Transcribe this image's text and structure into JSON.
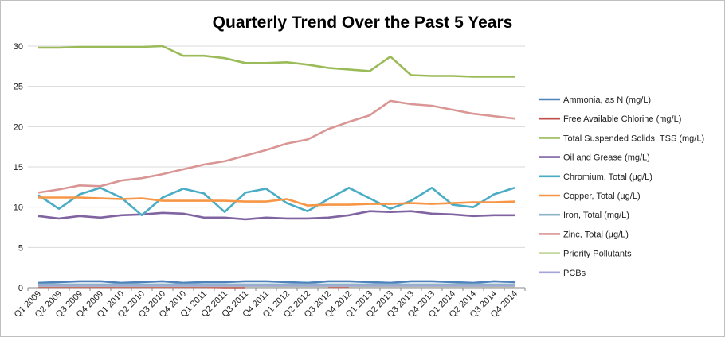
{
  "chart_data": {
    "type": "line",
    "title": "Quarterly Trend Over the Past 5 Years",
    "xlabel": "",
    "ylabel": "",
    "ylim": [
      0,
      30
    ],
    "yticks": [
      0,
      5,
      10,
      15,
      20,
      25,
      30
    ],
    "grid": true,
    "legend_position": "right",
    "categories": [
      "Q1 2009",
      "Q2 2009",
      "Q3 2009",
      "Q4 2009",
      "Q1 2010",
      "Q2 2010",
      "Q3 2010",
      "Q4 2010",
      "Q1 2011",
      "Q2 2011",
      "Q3 2011",
      "Q4 2011",
      "Q1 2012",
      "Q2 2012",
      "Q3 2012",
      "Q4 2012",
      "Q1 2013",
      "Q2 2013",
      "Q3 2013",
      "Q4 2013",
      "Q1 2014",
      "Q2 2014",
      "Q3 2014",
      "Q4 2014"
    ],
    "series": [
      {
        "name": "Ammonia, as N (mg/L)",
        "color": "#4f81bd",
        "values": [
          0.6,
          0.7,
          0.8,
          0.8,
          0.6,
          0.7,
          0.8,
          0.6,
          0.7,
          0.7,
          0.8,
          0.8,
          0.7,
          0.6,
          0.8,
          0.8,
          0.7,
          0.6,
          0.8,
          0.8,
          0.7,
          0.6,
          0.8,
          0.7
        ]
      },
      {
        "name": "Free Available Chlorine (mg/L)",
        "color": "#c0504d",
        "values": [
          0.1,
          0.1,
          0.1,
          0.1,
          0.1,
          0.1,
          0.1,
          0.1,
          0.1,
          0.05,
          0.05,
          null,
          null,
          null,
          0.1,
          0.1,
          null,
          null,
          null,
          null,
          null,
          null,
          null,
          null
        ]
      },
      {
        "name": "Total Suspended Solids, TSS (mg/L)",
        "color": "#9bbb59",
        "values": [
          29.8,
          29.8,
          29.9,
          29.9,
          29.9,
          29.9,
          30.0,
          28.8,
          28.8,
          28.5,
          27.9,
          27.9,
          28.0,
          27.7,
          27.3,
          27.1,
          26.9,
          28.7,
          26.4,
          26.3,
          26.3,
          26.2,
          26.2,
          26.2
        ]
      },
      {
        "name": "Oil and Grease (mg/L)",
        "color": "#8064a2",
        "values": [
          8.9,
          8.6,
          8.9,
          8.7,
          9.0,
          9.1,
          9.3,
          9.2,
          8.7,
          8.7,
          8.5,
          8.7,
          8.6,
          8.6,
          8.7,
          9.0,
          9.5,
          9.4,
          9.5,
          9.2,
          9.1,
          8.9,
          9.0,
          9.0
        ]
      },
      {
        "name": "Chromium, Total (µg/L)",
        "color": "#4bacc6",
        "values": [
          11.5,
          9.8,
          11.6,
          12.4,
          11.2,
          9.0,
          11.2,
          12.3,
          11.7,
          9.4,
          11.8,
          12.3,
          10.5,
          9.5,
          11.0,
          12.4,
          11.1,
          9.8,
          10.8,
          12.4,
          10.3,
          10.0,
          11.6,
          12.4
        ]
      },
      {
        "name": "Copper, Total (µg/L)",
        "color": "#f79646",
        "values": [
          11.2,
          11.2,
          11.2,
          11.1,
          11.0,
          11.1,
          10.8,
          10.8,
          10.8,
          10.8,
          10.7,
          10.7,
          11.0,
          10.2,
          10.3,
          10.3,
          10.4,
          10.4,
          10.5,
          10.4,
          10.5,
          10.6,
          10.6,
          10.7
        ]
      },
      {
        "name": "Iron, Total (mg/L)",
        "color": "#8eb4c8",
        "values": [
          0.4,
          0.4,
          0.4,
          0.4,
          0.4,
          0.4,
          0.4,
          0.4,
          0.4,
          0.4,
          0.4,
          0.4,
          0.4,
          0.4,
          0.4,
          0.4,
          0.4,
          0.4,
          0.4,
          0.4,
          0.4,
          0.4,
          0.4,
          0.4
        ]
      },
      {
        "name": "Zinc, Total (µg/L)",
        "color": "#d99694",
        "values": [
          11.8,
          12.2,
          12.7,
          12.6,
          13.3,
          13.6,
          14.1,
          14.7,
          15.3,
          15.7,
          16.4,
          17.1,
          17.9,
          18.4,
          19.7,
          20.6,
          21.4,
          23.2,
          22.8,
          22.6,
          22.1,
          21.6,
          21.3,
          21.0
        ]
      },
      {
        "name": "Priority Pollutants",
        "color": "#c3d69b",
        "values": [
          0.2,
          0.2,
          0.2,
          0.2,
          0.2,
          0.2,
          0.2,
          0.2,
          0.2,
          0.2,
          0.2,
          0.2,
          0.2,
          0.2,
          0.2,
          0.2,
          0.2,
          0.2,
          0.2,
          0.2,
          0.2,
          0.2,
          0.2,
          0.2
        ]
      },
      {
        "name": "PCBs",
        "color": "#a5a5d8",
        "values": [
          0.25,
          0.25,
          0.25,
          0.25,
          0.25,
          0.25,
          0.25,
          0.25,
          0.25,
          0.25,
          0.25,
          0.25,
          0.25,
          0.25,
          0.25,
          0.25,
          0.25,
          0.25,
          0.25,
          0.25,
          0.25,
          0.25,
          0.25,
          0.25
        ]
      }
    ]
  }
}
